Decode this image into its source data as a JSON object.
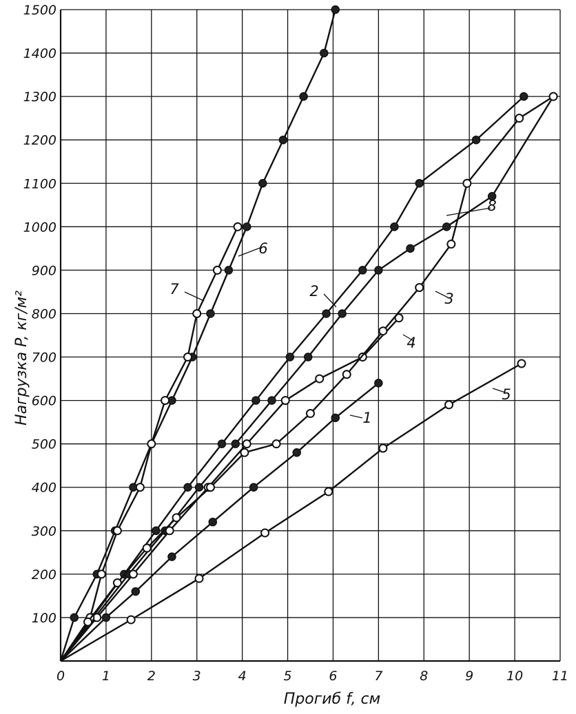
{
  "chart_data": {
    "type": "line",
    "ylabel": "Нагрузка P, кг/м²",
    "xlabel": "Прогиб f, см",
    "xlim": [
      0,
      11
    ],
    "ylim": [
      0,
      1500
    ],
    "x_ticks": [
      "0",
      "1",
      "2",
      "3",
      "4",
      "5",
      "6",
      "7",
      "8",
      "9",
      "10",
      "11"
    ],
    "y_ticks": [
      "100",
      "200",
      "300",
      "400",
      "500",
      "600",
      "700",
      "800",
      "900",
      "1000",
      "1100",
      "1200",
      "1300",
      "1400",
      "1500"
    ],
    "grid": true,
    "series": [
      {
        "name": "1",
        "marker": "filled",
        "points": [
          [
            0,
            0
          ],
          [
            1.0,
            100
          ],
          [
            1.65,
            160
          ],
          [
            2.45,
            240
          ],
          [
            3.35,
            320
          ],
          [
            4.25,
            400
          ],
          [
            5.2,
            480
          ],
          [
            6.05,
            560
          ],
          [
            7.0,
            640
          ]
        ]
      },
      {
        "name": "2",
        "marker": "filled",
        "points": [
          [
            0,
            0
          ],
          [
            0.7,
            100
          ],
          [
            1.4,
            200
          ],
          [
            2.1,
            300
          ],
          [
            2.8,
            400
          ],
          [
            3.55,
            500
          ],
          [
            4.3,
            600
          ],
          [
            5.05,
            700
          ],
          [
            5.85,
            800
          ],
          [
            6.65,
            900
          ],
          [
            7.35,
            1000
          ],
          [
            7.9,
            1100
          ],
          [
            9.15,
            1200
          ],
          [
            10.2,
            1300
          ]
        ]
      },
      {
        "name": "3",
        "marker": "filled",
        "points": [
          [
            0,
            0
          ],
          [
            0.75,
            100
          ],
          [
            1.5,
            200
          ],
          [
            2.3,
            300
          ],
          [
            3.05,
            400
          ],
          [
            3.85,
            500
          ],
          [
            4.65,
            600
          ],
          [
            5.45,
            700
          ],
          [
            6.2,
            800
          ],
          [
            7.0,
            900
          ],
          [
            7.7,
            950
          ],
          [
            8.5,
            1000
          ],
          [
            9.5,
            1070
          ],
          [
            10.85,
            1300
          ]
        ]
      },
      {
        "name": "4",
        "marker": "open",
        "points": [
          [
            0,
            0
          ],
          [
            0.8,
            100
          ],
          [
            1.6,
            200
          ],
          [
            2.4,
            300
          ],
          [
            3.25,
            400
          ],
          [
            4.1,
            500
          ],
          [
            4.95,
            600
          ],
          [
            5.7,
            650
          ],
          [
            6.65,
            700
          ],
          [
            7.45,
            790
          ]
        ]
      },
      {
        "name": "5",
        "marker": "open",
        "points": [
          [
            0,
            0
          ],
          [
            1.55,
            95
          ],
          [
            3.05,
            190
          ],
          [
            4.5,
            295
          ],
          [
            5.9,
            390
          ],
          [
            7.1,
            490
          ],
          [
            8.55,
            590
          ],
          [
            10.15,
            685
          ]
        ]
      },
      {
        "name": "6",
        "marker": "filled",
        "points": [
          [
            0,
            0
          ],
          [
            0.3,
            100
          ],
          [
            0.8,
            200
          ],
          [
            1.2,
            300
          ],
          [
            1.6,
            400
          ],
          [
            2.0,
            500
          ],
          [
            2.45,
            600
          ],
          [
            2.9,
            700
          ],
          [
            3.3,
            800
          ],
          [
            3.7,
            900
          ],
          [
            4.1,
            1000
          ],
          [
            4.45,
            1100
          ],
          [
            4.9,
            1200
          ],
          [
            5.35,
            1300
          ],
          [
            5.8,
            1400
          ],
          [
            6.05,
            1500
          ]
        ]
      },
      {
        "name": "7",
        "marker": "open",
        "points": [
          [
            0,
            0
          ],
          [
            0.65,
            100
          ],
          [
            0.9,
            200
          ],
          [
            1.25,
            300
          ],
          [
            1.75,
            400
          ],
          [
            2.0,
            500
          ],
          [
            2.3,
            600
          ],
          [
            2.8,
            700
          ],
          [
            3.0,
            800
          ],
          [
            3.45,
            900
          ],
          [
            3.9,
            1000
          ]
        ]
      },
      {
        "name": "8",
        "marker": "open",
        "points": [
          [
            0,
            0
          ],
          [
            0.6,
            90
          ],
          [
            1.25,
            180
          ],
          [
            1.9,
            260
          ],
          [
            2.55,
            330
          ],
          [
            3.3,
            400
          ],
          [
            4.05,
            480
          ],
          [
            4.75,
            500
          ],
          [
            5.5,
            570
          ],
          [
            6.3,
            660
          ],
          [
            7.1,
            760
          ],
          [
            7.9,
            860
          ],
          [
            8.6,
            960
          ],
          [
            8.95,
            1100
          ],
          [
            10.1,
            1250
          ],
          [
            10.85,
            1300
          ]
        ]
      }
    ]
  }
}
